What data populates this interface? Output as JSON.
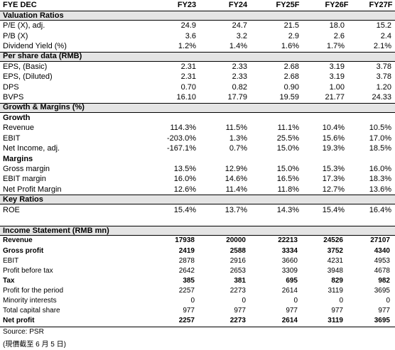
{
  "header": {
    "label": "FYE DEC",
    "columns": [
      "FY23",
      "FY24",
      "FY25F",
      "FY26F",
      "FY27F"
    ]
  },
  "sections": [
    {
      "title": "Valuation Ratios",
      "rows": [
        {
          "label": "P/E (X), adj.",
          "values": [
            "24.9",
            "24.7",
            "21.5",
            "18.0",
            "15.2"
          ]
        },
        {
          "label": "P/B (X)",
          "values": [
            "3.6",
            "3.2",
            "2.9",
            "2.6",
            "2.4"
          ]
        },
        {
          "label": "Dividend Yield (%)",
          "values": [
            "1.2%",
            "1.4%",
            "1.6%",
            "1.7%",
            "2.1%"
          ]
        }
      ]
    },
    {
      "title": "Per share data (RMB)",
      "rows": [
        {
          "label": "EPS, (Basic)",
          "values": [
            "2.31",
            "2.33",
            "2.68",
            "3.19",
            "3.78"
          ]
        },
        {
          "label": "EPS, (Diluted)",
          "values": [
            "2.31",
            "2.33",
            "2.68",
            "3.19",
            "3.78"
          ]
        },
        {
          "label": "DPS",
          "values": [
            "0.70",
            "0.82",
            "0.90",
            "1.00",
            "1.20"
          ]
        },
        {
          "label": "BVPS",
          "values": [
            "16.10",
            "17.79",
            "19.59",
            "21.77",
            "24.33"
          ]
        }
      ]
    },
    {
      "title": "Growth & Margins (%)",
      "rows": [
        {
          "heading": "Growth"
        },
        {
          "label": "Revenue",
          "values": [
            "114.3%",
            "11.5%",
            "11.1%",
            "10.4%",
            "10.5%"
          ]
        },
        {
          "label": "EBIT",
          "values": [
            "-203.0%",
            "1.3%",
            "25.5%",
            "15.6%",
            "17.0%"
          ]
        },
        {
          "label": "Net Income, adj.",
          "values": [
            "-167.1%",
            "0.7%",
            "15.0%",
            "19.3%",
            "18.5%"
          ]
        },
        {
          "heading": "Margins"
        },
        {
          "label": "Gross margin",
          "values": [
            "13.5%",
            "12.9%",
            "15.0%",
            "15.3%",
            "16.0%"
          ]
        },
        {
          "label": "EBIT margin",
          "values": [
            "16.0%",
            "14.6%",
            "16.5%",
            "17.3%",
            "18.3%"
          ]
        },
        {
          "label": "Net Profit Margin",
          "values": [
            "12.6%",
            "11.4%",
            "11.8%",
            "12.7%",
            "13.6%"
          ]
        }
      ]
    },
    {
      "title": "Key Ratios",
      "rows": [
        {
          "label": "ROE",
          "values": [
            "15.4%",
            "13.7%",
            "14.3%",
            "15.4%",
            "16.4%"
          ]
        }
      ]
    }
  ],
  "income_statement": {
    "title": "Income Statement (RMB mn)",
    "rows": [
      {
        "label": "Revenue",
        "bold": true,
        "values": [
          "17938",
          "20000",
          "22213",
          "24526",
          "27107"
        ]
      },
      {
        "label": "Gross profit",
        "bold": true,
        "values": [
          "2419",
          "2588",
          "3334",
          "3752",
          "4340"
        ]
      },
      {
        "label": "EBIT",
        "values": [
          "2878",
          "2916",
          "3660",
          "4231",
          "4953"
        ]
      },
      {
        "label": "Profit before tax",
        "values": [
          "2642",
          "2653",
          "3309",
          "3948",
          "4678"
        ]
      },
      {
        "label": "Tax",
        "bold": true,
        "values": [
          "385",
          "381",
          "695",
          "829",
          "982"
        ]
      },
      {
        "label": "Profit for the period",
        "values": [
          "2257",
          "2273",
          "2614",
          "3119",
          "3695"
        ]
      },
      {
        "label": "Minority interests",
        "values": [
          "0",
          "0",
          "0",
          "0",
          "0"
        ]
      },
      {
        "label": "Total capital share",
        "values": [
          "977",
          "977",
          "977",
          "977",
          "977"
        ]
      },
      {
        "label": "Net profit",
        "bold": true,
        "values": [
          "2257",
          "2273",
          "2614",
          "3119",
          "3695"
        ]
      }
    ]
  },
  "source": "Source: PSR",
  "note": "(現價截至 6 月 5 日)"
}
